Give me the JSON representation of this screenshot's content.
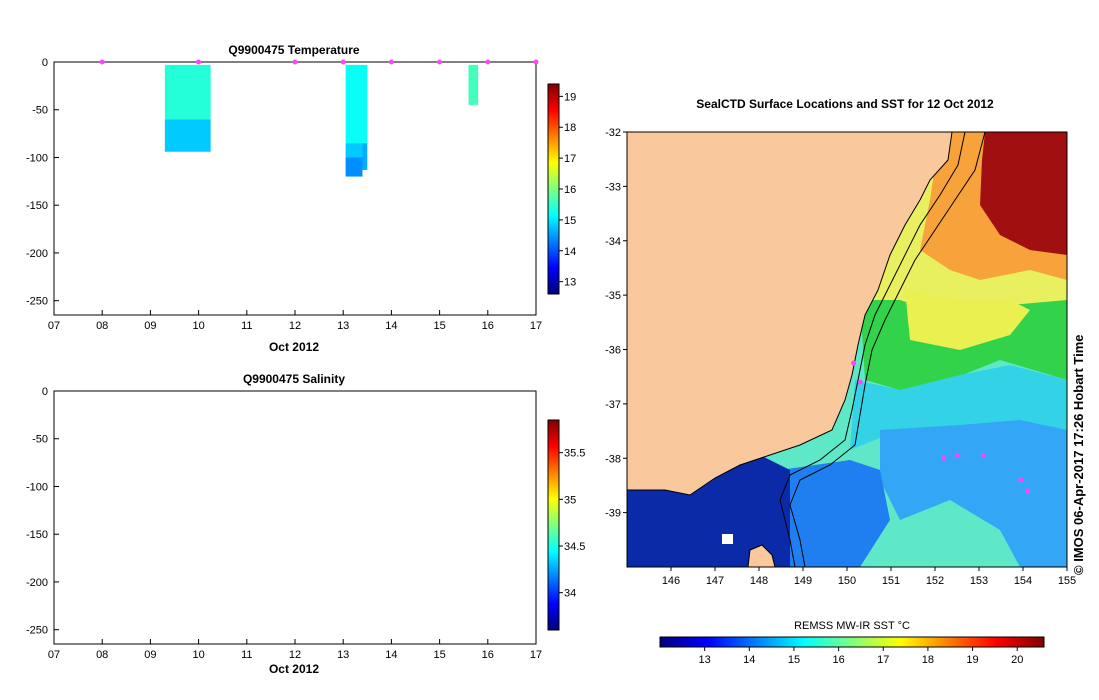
{
  "chart_data": [
    {
      "type": "heatmap",
      "title": "Q9900475  Temperature",
      "xlabel": "Oct 2012",
      "x_ticks": [
        "07",
        "08",
        "09",
        "10",
        "11",
        "12",
        "13",
        "14",
        "15",
        "16",
        "17"
      ],
      "x_range": [
        7,
        17
      ],
      "y_ticks": [
        0,
        -50,
        -100,
        -150,
        -200,
        -250
      ],
      "y_range": [
        -265,
        0
      ],
      "profile_markers_day": [
        8,
        10,
        12,
        13,
        14,
        15,
        16,
        17
      ],
      "profiles": [
        {
          "x_start": 9.3,
          "x_end": 10.25,
          "segments": [
            {
              "top": -3,
              "bottom": -60,
              "value": 15.4
            },
            {
              "top": -60,
              "bottom": -94,
              "value": 14.8
            }
          ]
        },
        {
          "x_start": 13.05,
          "x_end": 13.4,
          "segments": [
            {
              "top": -3,
              "bottom": -85,
              "value": 15.2
            },
            {
              "top": -85,
              "bottom": -100,
              "value": 14.8
            },
            {
              "top": -100,
              "bottom": -120,
              "value": 14.4
            }
          ]
        },
        {
          "x_start": 13.4,
          "x_end": 13.5,
          "segments": [
            {
              "top": -3,
              "bottom": -85,
              "value": 15.2
            },
            {
              "top": -85,
              "bottom": -113,
              "value": 14.6
            }
          ]
        },
        {
          "x_start": 15.6,
          "x_end": 15.8,
          "segments": [
            {
              "top": -3,
              "bottom": -45,
              "value": 15.6
            }
          ]
        }
      ],
      "colorbar": {
        "ticks": [
          19,
          18,
          17,
          16,
          15,
          14,
          13
        ],
        "range": [
          12.6,
          19.4
        ]
      }
    },
    {
      "type": "heatmap",
      "title": "Q9900475  Salinity",
      "xlabel": "Oct 2012",
      "x_ticks": [
        "07",
        "08",
        "09",
        "10",
        "11",
        "12",
        "13",
        "14",
        "15",
        "16",
        "17"
      ],
      "x_range": [
        7,
        17
      ],
      "y_ticks": [
        0,
        -50,
        -100,
        -150,
        -200,
        -250
      ],
      "y_range": [
        -265,
        0
      ],
      "colorbar": {
        "ticks": [
          "35.5",
          "35",
          "34.5",
          "34"
        ],
        "range": [
          33.6,
          35.85
        ]
      }
    },
    {
      "type": "heatmap",
      "title": "SealCTD Surface Locations and SST for 12 Oct 2012",
      "x_ticks": [
        "146",
        "147",
        "148",
        "149",
        "150",
        "151",
        "152",
        "153",
        "154",
        "155"
      ],
      "x_range": [
        145,
        155
      ],
      "y_ticks": [
        "-32",
        "-33",
        "-34",
        "-35",
        "-36",
        "-37",
        "-38",
        "-39"
      ],
      "y_range": [
        -40,
        -32
      ],
      "colorbar": {
        "label": "REMSS MW-IR SST °C",
        "ticks": [
          "13",
          "14",
          "15",
          "16",
          "17",
          "18",
          "19",
          "20"
        ],
        "range": [
          12,
          20.6
        ]
      },
      "credit": "© IMOS 06-Apr-2017 17:26 Hobart Time",
      "seal_positions": [
        {
          "lon": 150.15,
          "lat": -36.25
        },
        {
          "lon": 150.3,
          "lat": -36.6
        },
        {
          "lon": 152.2,
          "lat": -38.0
        },
        {
          "lon": 152.5,
          "lat": -37.95
        },
        {
          "lon": 153.1,
          "lat": -37.95
        },
        {
          "lon": 153.95,
          "lat": -38.4
        },
        {
          "lon": 154.1,
          "lat": -38.6
        }
      ]
    }
  ],
  "colors": {
    "land": "#f9c99d",
    "marker": "#ff44ff",
    "colormap": [
      "#00007f",
      "#0000ff",
      "#007fff",
      "#00ffff",
      "#7fff7f",
      "#ffff00",
      "#ff7f00",
      "#ff0000",
      "#7f0000"
    ]
  }
}
